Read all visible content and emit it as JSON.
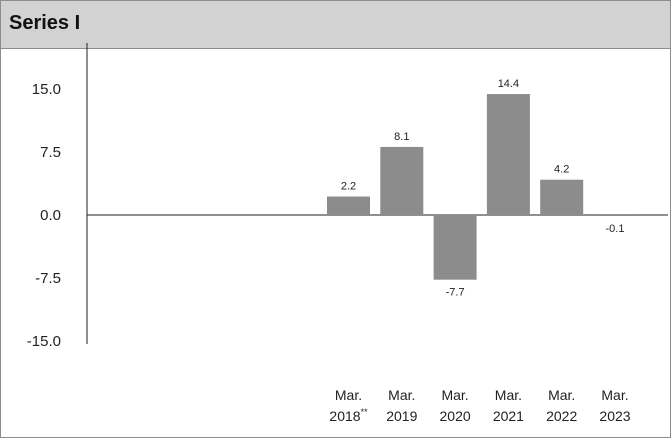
{
  "chart_data": {
    "type": "bar",
    "title": "Series I",
    "categories": [
      {
        "line1": "Mar.",
        "line2": "2018",
        "note": "**"
      },
      {
        "line1": "Mar.",
        "line2": "2019",
        "note": ""
      },
      {
        "line1": "Mar.",
        "line2": "2020",
        "note": ""
      },
      {
        "line1": "Mar.",
        "line2": "2021",
        "note": ""
      },
      {
        "line1": "Mar.",
        "line2": "2022",
        "note": ""
      },
      {
        "line1": "Mar.",
        "line2": "2023",
        "note": ""
      }
    ],
    "values": [
      2.2,
      8.1,
      -7.7,
      14.4,
      4.2,
      -0.1
    ],
    "value_labels": [
      "2.2",
      "8.1",
      "-7.7",
      "14.4",
      "4.2",
      "-0.1"
    ],
    "y_ticks": [
      15.0,
      7.5,
      0.0,
      -7.5,
      -15.0
    ],
    "y_tick_labels": [
      "15.0",
      "7.5",
      "0.0",
      "-7.5",
      "-15.0"
    ],
    "ylim": [
      -15,
      15
    ],
    "grid": false,
    "bar_color": "#8c8c8c"
  }
}
